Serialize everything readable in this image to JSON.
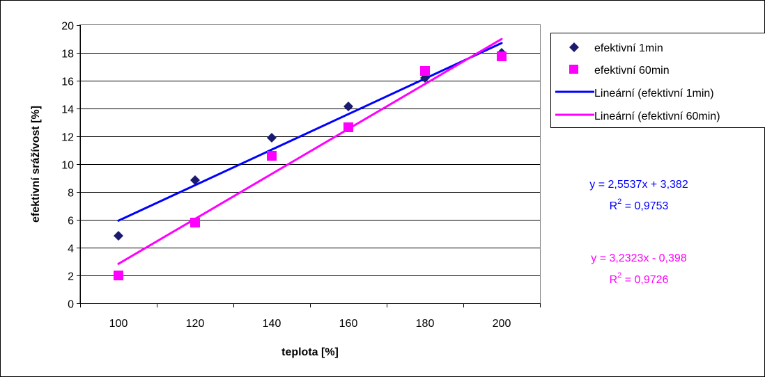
{
  "chart_data": {
    "type": "scatter",
    "xlabel": "teplota [%]",
    "ylabel": "efektivní srážívost  [%]",
    "x_categories": [
      "100",
      "120",
      "140",
      "160",
      "180",
      "200"
    ],
    "xlim": [
      90,
      210
    ],
    "ylim": [
      0,
      20
    ],
    "y_ticks": [
      "0",
      "2",
      "4",
      "6",
      "8",
      "10",
      "12",
      "14",
      "16",
      "18",
      "20"
    ],
    "grid": "horizontal",
    "legend_position": "right",
    "series": [
      {
        "name": "efektivní 1min",
        "marker": "diamond",
        "color": "#1a1a6e",
        "x": [
          100,
          120,
          140,
          160,
          180,
          200
        ],
        "y": [
          4.85,
          8.85,
          11.9,
          14.15,
          16.2,
          18.0
        ]
      },
      {
        "name": "efektivní 60min",
        "marker": "square",
        "color": "#ff00ff",
        "x": [
          100,
          120,
          140,
          160,
          180,
          200
        ],
        "y": [
          2.0,
          5.8,
          10.6,
          12.65,
          16.7,
          17.75
        ]
      }
    ],
    "trendlines": [
      {
        "name": "Lineární (efektivní 1min)",
        "color": "#0000ff",
        "slope": 2.5537,
        "intercept": 3.382,
        "equation_text": "y = 2,5537x + 3,382",
        "r2_label": "R",
        "r2_exp": "2",
        "r2_value": " = 0,9753"
      },
      {
        "name": "Lineární (efektivní 60min)",
        "color": "#ff00ff",
        "slope": 3.2323,
        "intercept": -0.398,
        "equation_text": "y = 3,2323x - 0,398",
        "r2_label": "R",
        "r2_exp": "2",
        "r2_value": " = 0,9726"
      }
    ]
  }
}
